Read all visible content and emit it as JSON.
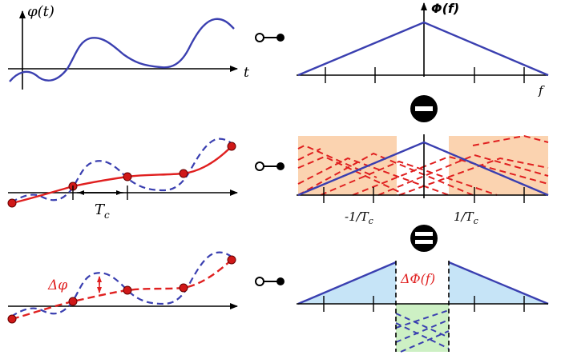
{
  "colors": {
    "blue": "#3a3fb0",
    "red": "#e02020",
    "dot_fill": "#d01818",
    "orange_fill": "#fbd3b0",
    "lightblue_fill": "#c6e4f7",
    "green_fill": "#cdf0c4",
    "axis": "#000000"
  },
  "row1": {
    "signal_label": "φ(t)",
    "time_label": "t",
    "spectrum_label": "Φ(f)",
    "freq_label": "f"
  },
  "row2": {
    "sampling_label": "T",
    "sampling_sub": "c",
    "neg_freq_label": "-1/T",
    "neg_freq_sub": "c",
    "pos_freq_label": "1/T",
    "pos_freq_sub": "c"
  },
  "row3": {
    "delta_phi_label": "Δφ",
    "delta_spectrum_label": "ΔΦ(f)"
  },
  "icons": {
    "minus": "minus-operator-icon",
    "equals": "equals-operator-icon",
    "transform": "fourier-pair-icon"
  }
}
